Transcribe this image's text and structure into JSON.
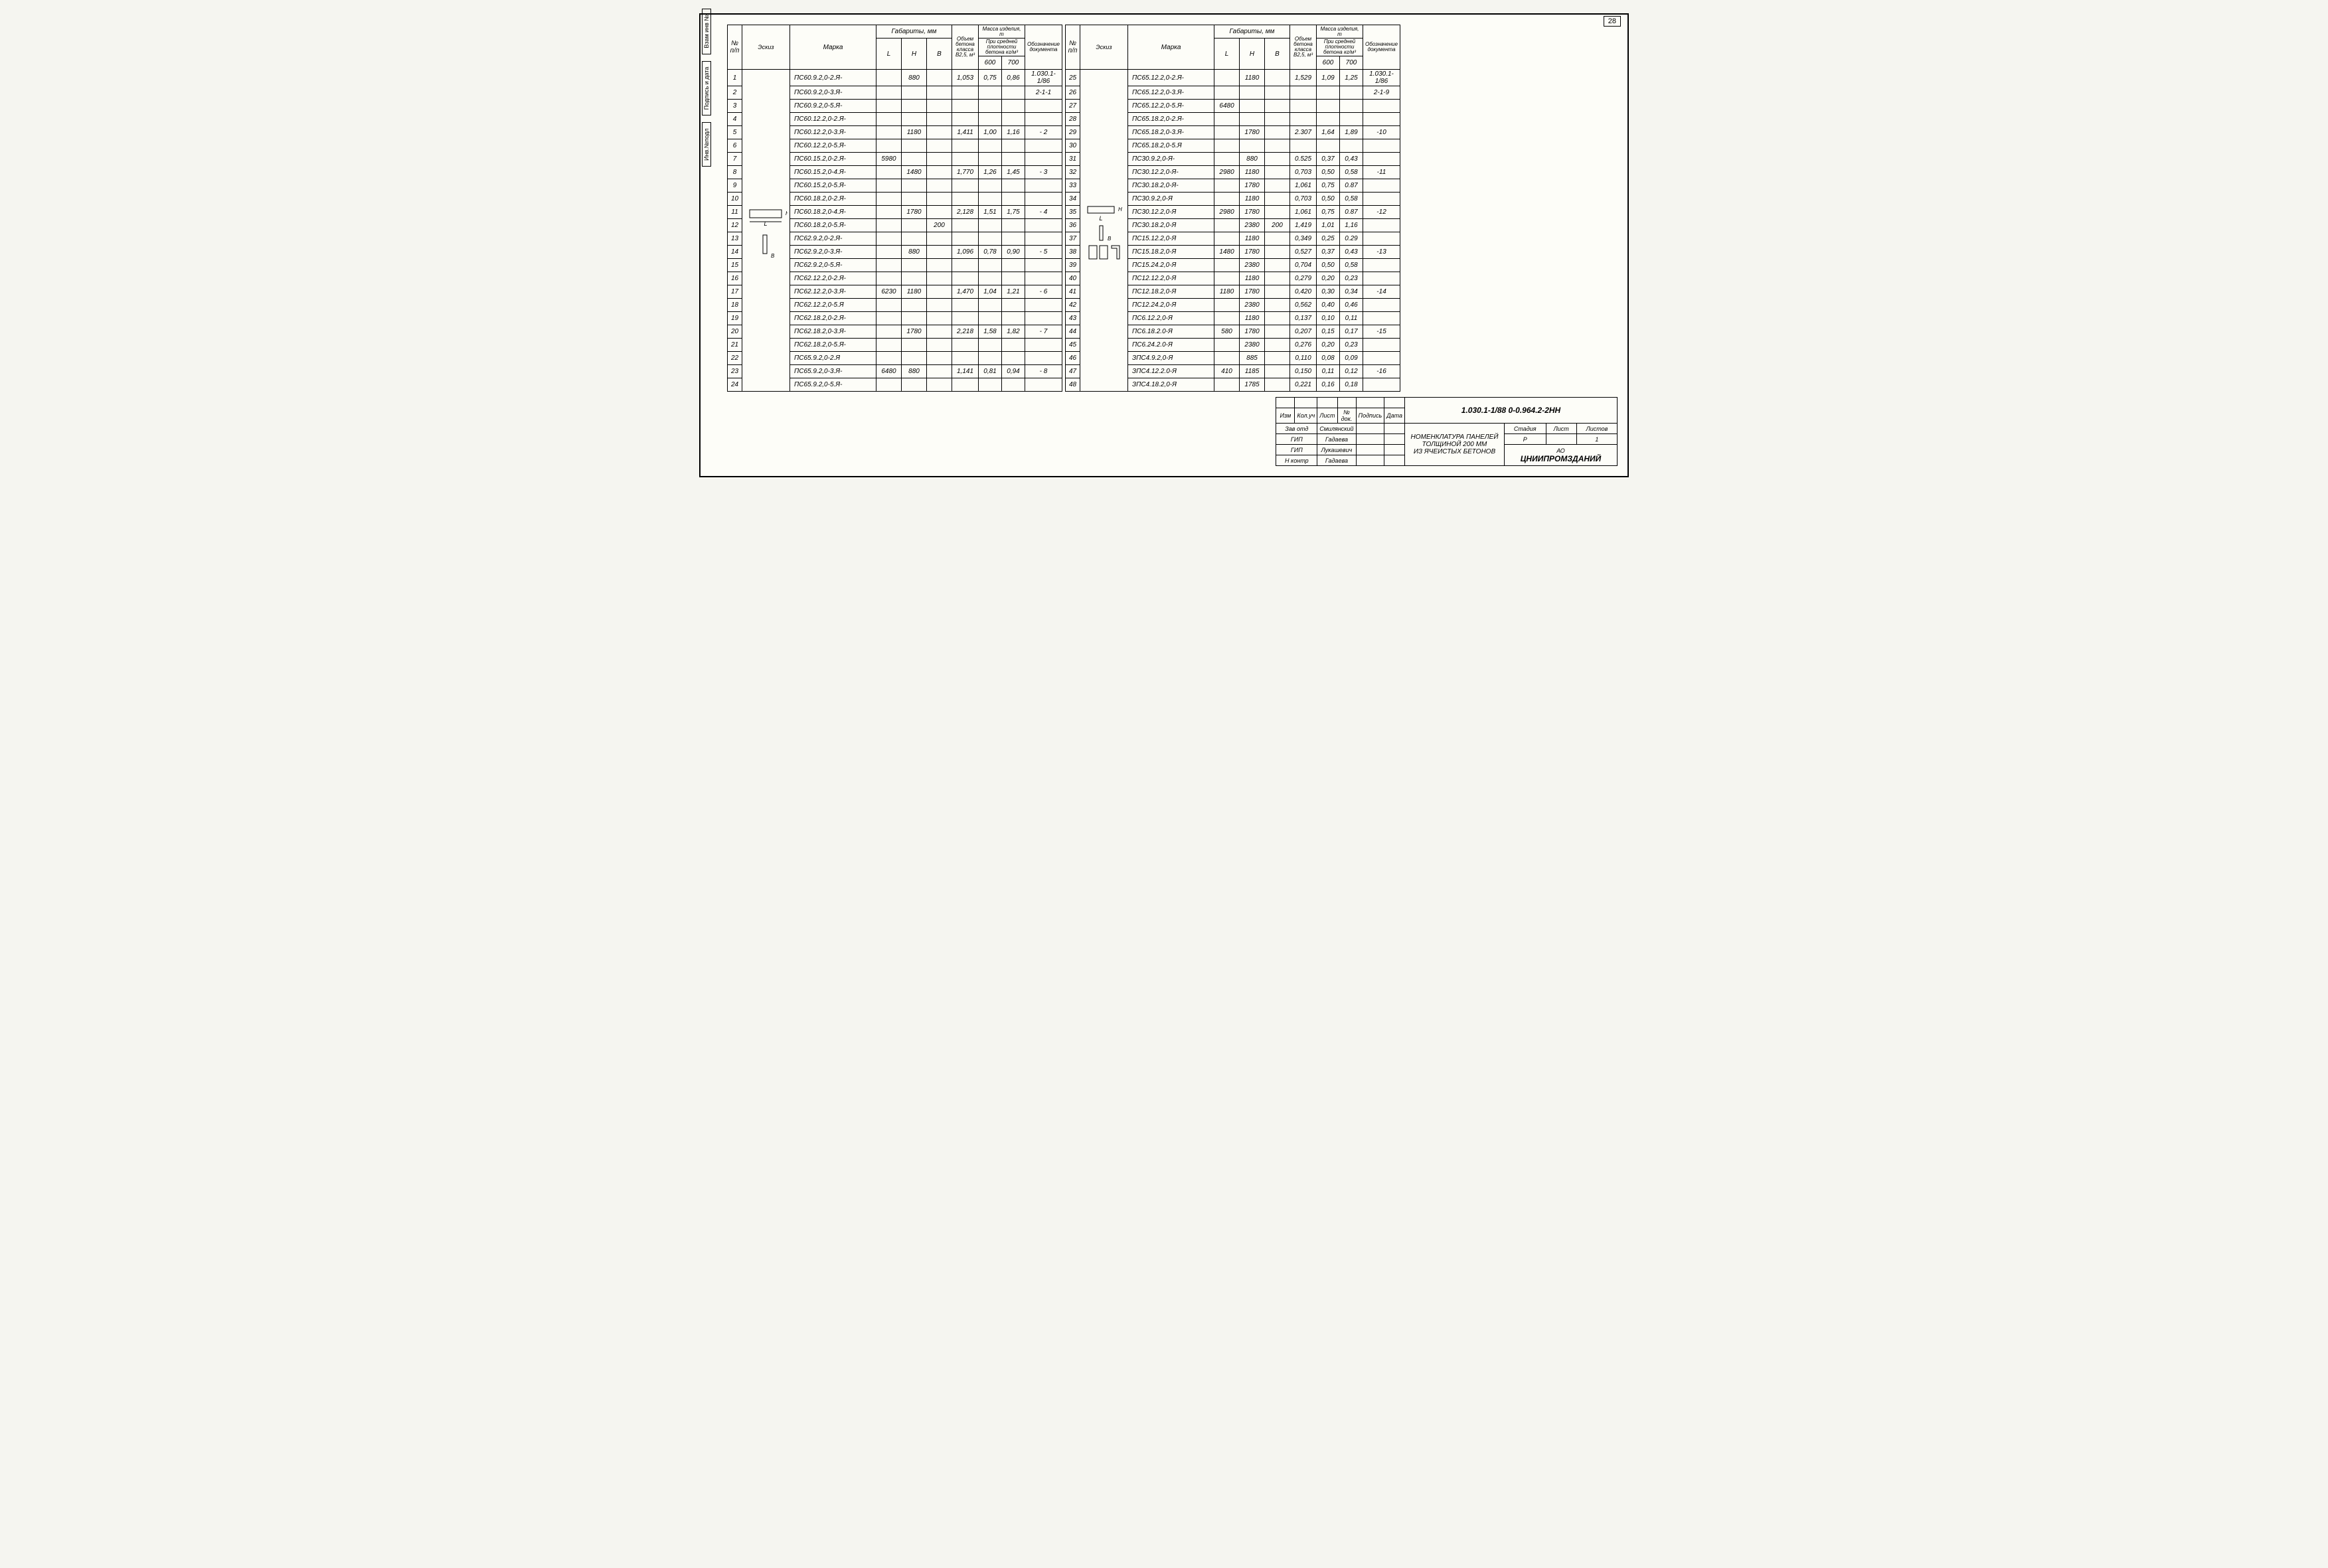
{
  "page_number": "28",
  "side_labels": [
    "Инв.№подл",
    "Подпись и дата",
    "Взам инв №"
  ],
  "headers": {
    "np": "№ п/п",
    "eskiz": "Эскиз",
    "marka": "Марка",
    "gabarity": "Габариты, мм",
    "L": "L",
    "H": "H",
    "B": "B",
    "volume": "Объем бетона класса В2,5, м³",
    "mass": "Масса изделия, т",
    "mass_sub": "при отпускной влажности 10%",
    "mass_sub2": "При средней плотности бетона кг/м³",
    "m600": "600",
    "m700": "700",
    "doc": "Обозначение документа"
  },
  "left_rows": [
    {
      "n": "1",
      "m": "ПС60.9.2,0-2.Я-",
      "L": "",
      "H": "880",
      "B": "",
      "v": "1,053",
      "m6": "0,75",
      "m7": "0,86",
      "d": "1.030.1-1/86"
    },
    {
      "n": "2",
      "m": "ПС60.9.2,0-3.Я-",
      "L": "",
      "H": "",
      "B": "",
      "v": "",
      "m6": "",
      "m7": "",
      "d": "2-1-1"
    },
    {
      "n": "3",
      "m": "ПС60.9.2,0-5.Я-",
      "L": "",
      "H": "",
      "B": "",
      "v": "",
      "m6": "",
      "m7": "",
      "d": ""
    },
    {
      "n": "4",
      "m": "ПС60.12.2,0-2.Я-",
      "L": "",
      "H": "",
      "B": "",
      "v": "",
      "m6": "",
      "m7": "",
      "d": ""
    },
    {
      "n": "5",
      "m": "ПС60.12.2,0-3.Я-",
      "L": "",
      "H": "1180",
      "B": "",
      "v": "1,411",
      "m6": "1,00",
      "m7": "1,16",
      "d": "- 2"
    },
    {
      "n": "6",
      "m": "ПС60.12.2,0-5.Я-",
      "L": "",
      "H": "",
      "B": "",
      "v": "",
      "m6": "",
      "m7": "",
      "d": ""
    },
    {
      "n": "7",
      "m": "ПС60.15.2,0-2.Я-",
      "L": "5980",
      "H": "",
      "B": "",
      "v": "",
      "m6": "",
      "m7": "",
      "d": ""
    },
    {
      "n": "8",
      "m": "ПС60.15.2,0-4.Я-",
      "L": "",
      "H": "1480",
      "B": "",
      "v": "1,770",
      "m6": "1,26",
      "m7": "1,45",
      "d": "- 3"
    },
    {
      "n": "9",
      "m": "ПС60.15.2,0-5.Я-",
      "L": "",
      "H": "",
      "B": "",
      "v": "",
      "m6": "",
      "m7": "",
      "d": ""
    },
    {
      "n": "10",
      "m": "ПС60.18.2,0-2.Я-",
      "L": "",
      "H": "",
      "B": "",
      "v": "",
      "m6": "",
      "m7": "",
      "d": ""
    },
    {
      "n": "11",
      "m": "ПС60.18.2,0-4.Я-",
      "L": "",
      "H": "1780",
      "B": "",
      "v": "2,128",
      "m6": "1,51",
      "m7": "1,75",
      "d": "- 4"
    },
    {
      "n": "12",
      "m": "ПС60.18.2,0-5.Я-",
      "L": "",
      "H": "",
      "B": "200",
      "v": "",
      "m6": "",
      "m7": "",
      "d": ""
    },
    {
      "n": "13",
      "m": "ПС62.9.2,0-2.Я-",
      "L": "",
      "H": "",
      "B": "",
      "v": "",
      "m6": "",
      "m7": "",
      "d": ""
    },
    {
      "n": "14",
      "m": "ПС62.9.2,0-3.Я-",
      "L": "",
      "H": "880",
      "B": "",
      "v": "1,096",
      "m6": "0,78",
      "m7": "0,90",
      "d": "- 5"
    },
    {
      "n": "15",
      "m": "ПС62.9.2,0-5.Я-",
      "L": "",
      "H": "",
      "B": "",
      "v": "",
      "m6": "",
      "m7": "",
      "d": ""
    },
    {
      "n": "16",
      "m": "ПС62.12.2,0-2.Я-",
      "L": "",
      "H": "",
      "B": "",
      "v": "",
      "m6": "",
      "m7": "",
      "d": ""
    },
    {
      "n": "17",
      "m": "ПС62.12.2,0-3.Я-",
      "L": "6230",
      "H": "1180",
      "B": "",
      "v": "1,470",
      "m6": "1,04",
      "m7": "1,21",
      "d": "- 6"
    },
    {
      "n": "18",
      "m": "ПС62.12.2,0-5.Я",
      "L": "",
      "H": "",
      "B": "",
      "v": "",
      "m6": "",
      "m7": "",
      "d": ""
    },
    {
      "n": "19",
      "m": "ПС62.18.2,0-2.Я-",
      "L": "",
      "H": "",
      "B": "",
      "v": "",
      "m6": "",
      "m7": "",
      "d": ""
    },
    {
      "n": "20",
      "m": "ПС62.18.2,0-3.Я-",
      "L": "",
      "H": "1780",
      "B": "",
      "v": "2,218",
      "m6": "1,58",
      "m7": "1,82",
      "d": "- 7"
    },
    {
      "n": "21",
      "m": "ПС62.18.2,0-5.Я-",
      "L": "",
      "H": "",
      "B": "",
      "v": "",
      "m6": "",
      "m7": "",
      "d": ""
    },
    {
      "n": "22",
      "m": "ПС65.9.2,0-2.Я",
      "L": "",
      "H": "",
      "B": "",
      "v": "",
      "m6": "",
      "m7": "",
      "d": ""
    },
    {
      "n": "23",
      "m": "ПС65.9.2,0-3.Я-",
      "L": "6480",
      "H": "880",
      "B": "",
      "v": "1,141",
      "m6": "0,81",
      "m7": "0,94",
      "d": "- 8"
    },
    {
      "n": "24",
      "m": "ПС65.9.2,0-5.Я-",
      "L": "",
      "H": "",
      "B": "",
      "v": "",
      "m6": "",
      "m7": "",
      "d": ""
    }
  ],
  "right_rows": [
    {
      "n": "25",
      "m": "ПС65.12.2,0-2.Я-",
      "L": "",
      "H": "1180",
      "B": "",
      "v": "1,529",
      "m6": "1,09",
      "m7": "1,25",
      "d": "1.030.1-1/86"
    },
    {
      "n": "26",
      "m": "ПС65.12.2,0-3.Я-",
      "L": "",
      "H": "",
      "B": "",
      "v": "",
      "m6": "",
      "m7": "",
      "d": "2-1-9"
    },
    {
      "n": "27",
      "m": "ПС65.12.2,0-5.Я-",
      "L": "6480",
      "H": "",
      "B": "",
      "v": "",
      "m6": "",
      "m7": "",
      "d": ""
    },
    {
      "n": "28",
      "m": "ПС65.18.2,0-2.Я-",
      "L": "",
      "H": "",
      "B": "",
      "v": "",
      "m6": "",
      "m7": "",
      "d": ""
    },
    {
      "n": "29",
      "m": "ПС65.18.2,0-3.Я-",
      "L": "",
      "H": "1780",
      "B": "",
      "v": "2.307",
      "m6": "1,64",
      "m7": "1,89",
      "d": "-10"
    },
    {
      "n": "30",
      "m": "ПС65.18.2,0-5.Я",
      "L": "",
      "H": "",
      "B": "",
      "v": "",
      "m6": "",
      "m7": "",
      "d": ""
    },
    {
      "n": "31",
      "m": "ПС30.9.2,0-Я-",
      "L": "",
      "H": "880",
      "B": "",
      "v": "0.525",
      "m6": "0,37",
      "m7": "0,43",
      "d": ""
    },
    {
      "n": "32",
      "m": "ПС30.12.2,0-Я-",
      "L": "2980",
      "H": "1180",
      "B": "",
      "v": "0,703",
      "m6": "0,50",
      "m7": "0,58",
      "d": "-11"
    },
    {
      "n": "33",
      "m": "ПС30.18.2,0-Я-",
      "L": "",
      "H": "1780",
      "B": "",
      "v": "1,061",
      "m6": "0,75",
      "m7": "0.87",
      "d": ""
    },
    {
      "n": "34",
      "m": "ПС30.9.2,0-Я",
      "L": "",
      "H": "1180",
      "B": "",
      "v": "0,703",
      "m6": "0,50",
      "m7": "0,58",
      "d": ""
    },
    {
      "n": "35",
      "m": "ПС30.12.2,0-Я",
      "L": "2980",
      "H": "1780",
      "B": "",
      "v": "1,061",
      "m6": "0,75",
      "m7": "0.87",
      "d": "-12"
    },
    {
      "n": "36",
      "m": "ПС30.18.2,0-Я",
      "L": "",
      "H": "2380",
      "B": "200",
      "v": "1,419",
      "m6": "1,01",
      "m7": "1,16",
      "d": ""
    },
    {
      "n": "37",
      "m": "ПС15.12.2,0-Я",
      "L": "",
      "H": "1180",
      "B": "",
      "v": "0,349",
      "m6": "0,25",
      "m7": "0.29",
      "d": ""
    },
    {
      "n": "38",
      "m": "ПС15.18.2,0-Я",
      "L": "1480",
      "H": "1780",
      "B": "",
      "v": "0,527",
      "m6": "0,37",
      "m7": "0,43",
      "d": "-13"
    },
    {
      "n": "39",
      "m": "ПС15.24.2,0-Я",
      "L": "",
      "H": "2380",
      "B": "",
      "v": "0,704",
      "m6": "0,50",
      "m7": "0,58",
      "d": ""
    },
    {
      "n": "40",
      "m": "ПС12.12.2,0-Я",
      "L": "",
      "H": "1180",
      "B": "",
      "v": "0,279",
      "m6": "0,20",
      "m7": "0,23",
      "d": ""
    },
    {
      "n": "41",
      "m": "ПС12.18.2,0-Я",
      "L": "1180",
      "H": "1780",
      "B": "",
      "v": "0,420",
      "m6": "0,30",
      "m7": "0,34",
      "d": "-14"
    },
    {
      "n": "42",
      "m": "ПС12.24.2,0-Я",
      "L": "",
      "H": "2380",
      "B": "",
      "v": "0,562",
      "m6": "0,40",
      "m7": "0,46",
      "d": ""
    },
    {
      "n": "43",
      "m": "ПС6.12.2,0-Я",
      "L": "",
      "H": "1180",
      "B": "",
      "v": "0,137",
      "m6": "0,10",
      "m7": "0,11",
      "d": ""
    },
    {
      "n": "44",
      "m": "ПС6.18.2.0-Я",
      "L": "580",
      "H": "1780",
      "B": "",
      "v": "0,207",
      "m6": "0,15",
      "m7": "0,17",
      "d": "-15"
    },
    {
      "n": "45",
      "m": "ПС6.24.2.0-Я",
      "L": "",
      "H": "2380",
      "B": "",
      "v": "0,276",
      "m6": "0,20",
      "m7": "0,23",
      "d": ""
    },
    {
      "n": "46",
      "m": "ЗПС4.9.2,0-Я",
      "L": "",
      "H": "885",
      "B": "",
      "v": "0,110",
      "m6": "0,08",
      "m7": "0,09",
      "d": ""
    },
    {
      "n": "47",
      "m": "ЗПС4.12.2.0-Я",
      "L": "410",
      "H": "1185",
      "B": "",
      "v": "0,150",
      "m6": "0,11",
      "m7": "0,12",
      "d": "-16"
    },
    {
      "n": "48",
      "m": "ЗПС4.18.2,0-Я",
      "L": "",
      "H": "1785",
      "B": "",
      "v": "0,221",
      "m6": "0,16",
      "m7": "0,18",
      "d": ""
    }
  ],
  "title_block": {
    "code": "1.030.1-1/88 0-0.964.2-2НН",
    "title1": "НОМЕНКЛАТУРА ПАНЕЛЕЙ",
    "title2": "ТОЛЩИНОЙ 200 ММ",
    "title3": "ИЗ ЯЧЕИСТЫХ БЕТОНОВ",
    "org": "ЦНИИПРОМЗДАНИЙ",
    "cols": [
      "Изм",
      "Кол.уч",
      "Лист",
      "№ док.",
      "Подпись",
      "Дата"
    ],
    "roles": [
      {
        "r": "Зав отд",
        "n": "Смилянский"
      },
      {
        "r": "ГИП",
        "n": "Гадаева"
      },
      {
        "r": "ГИП",
        "n": "Лукашевич"
      },
      {
        "r": "Н контр",
        "n": "Гадаева"
      }
    ],
    "stadia_h": "Стадия",
    "list_h": "Лист",
    "listov_h": "Листов",
    "stadia": "Р",
    "list": "",
    "listov": "1",
    "ao": "АО"
  }
}
